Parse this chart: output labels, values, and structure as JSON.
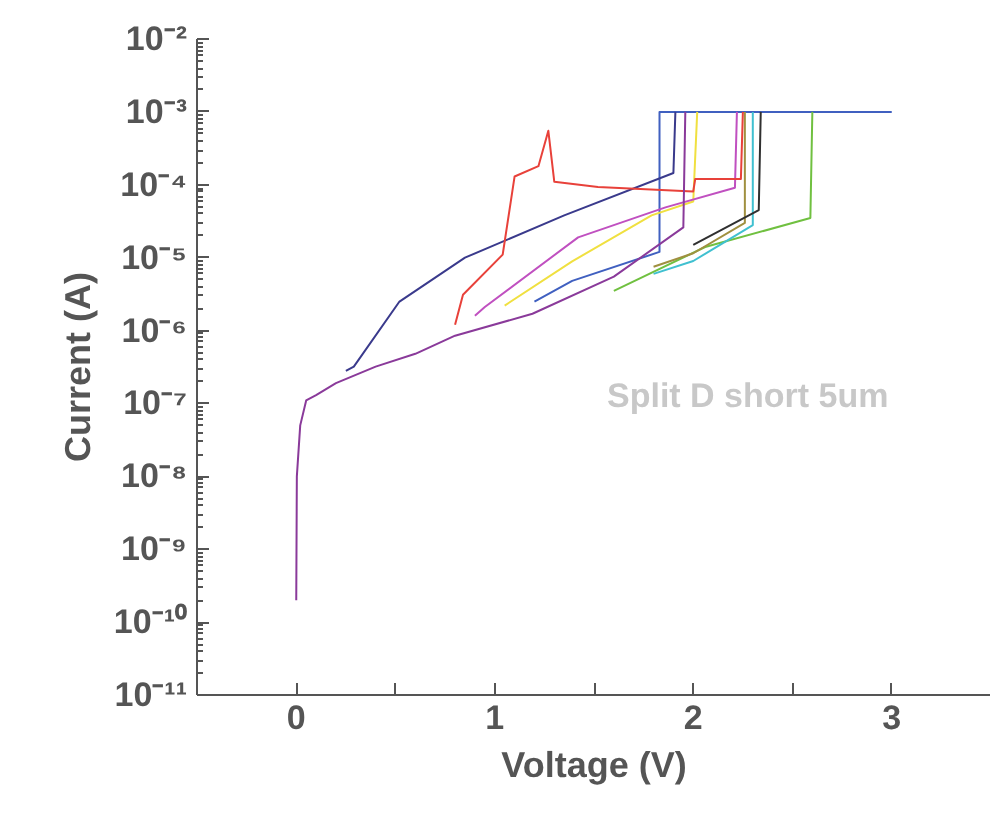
{
  "chart_data": {
    "type": "line",
    "xlabel": "Voltage (V)",
    "ylabel": "Current (A)",
    "log": "y",
    "grid": false,
    "marker": "none",
    "line_style": "solid",
    "annotations": [
      "Split D short 5um"
    ],
    "xlim": [
      -0.5,
      3.5
    ],
    "ylim": [
      1e-11,
      0.01
    ],
    "xticks": [
      0,
      {
        "value": 0.5,
        "label": null
      },
      1,
      {
        "value": 1.5,
        "label": null
      },
      2,
      {
        "value": 2.5,
        "label": null
      },
      3
    ],
    "yticks": [
      {
        "value": 1e-11,
        "label": "10⁻¹¹"
      },
      {
        "value": 1e-10,
        "label": "10⁻¹⁰"
      },
      {
        "value": 1e-09,
        "label": "10⁻⁹"
      },
      {
        "value": 1e-08,
        "label": "10⁻⁸"
      },
      {
        "value": 1e-07,
        "label": "10⁻⁷"
      },
      {
        "value": 1e-06,
        "label": "10⁻⁶"
      },
      {
        "value": 1e-05,
        "label": "10⁻⁵"
      },
      {
        "value": 0.0001,
        "label": "10⁻⁴"
      },
      {
        "value": 0.001,
        "label": "10⁻³"
      },
      {
        "value": 0.01,
        "label": "10⁻²"
      }
    ],
    "series": [
      {
        "color": "#4060c0",
        "x": [
          1.2,
          1.39,
          1.83,
          1.83,
          3.0
        ],
        "values": [
          2.5e-06,
          4.8e-06,
          1.2e-05,
          0.001,
          0.001
        ]
      },
      {
        "color": "#3a3a8c",
        "x": [
          0.25,
          0.29,
          0.52,
          0.85,
          1.35,
          1.9,
          1.91
        ],
        "values": [
          2.8e-07,
          3.2e-07,
          2.5e-06,
          1e-05,
          3.8e-05,
          0.000145,
          0.001
        ]
      },
      {
        "color": "#70c040",
        "x": [
          1.6,
          2.06,
          2.59,
          2.6
        ],
        "values": [
          3.5e-06,
          1.4e-05,
          3.5e-05,
          0.001
        ]
      },
      {
        "color": "#40c0d0",
        "x": [
          1.8,
          2.0,
          2.3,
          2.3
        ],
        "values": [
          6e-06,
          9e-06,
          2.8e-05,
          0.001
        ]
      },
      {
        "color": "#a09040",
        "x": [
          1.8,
          2.0,
          2.26,
          2.26
        ],
        "values": [
          7.5e-06,
          1.15e-05,
          3e-05,
          0.001
        ]
      },
      {
        "color": "#303030",
        "x": [
          2.0,
          2.33,
          2.34
        ],
        "values": [
          1.5e-05,
          4.5e-05,
          0.001
        ]
      },
      {
        "color": "#f0e040",
        "x": [
          1.05,
          1.39,
          1.79,
          2.0,
          2.02
        ],
        "values": [
          2.2e-06,
          8.9e-06,
          3.8e-05,
          5.9e-05,
          0.001
        ]
      },
      {
        "color": "#c050c0",
        "x": [
          0.9,
          0.95,
          1.42,
          1.86,
          2.21,
          2.22
        ],
        "values": [
          1.6e-06,
          2.1e-06,
          1.9e-05,
          4.9e-05,
          9.1e-05,
          0.001
        ]
      },
      {
        "color": "#e8413a",
        "x": [
          0.8,
          0.84,
          1.04,
          1.1,
          1.22,
          1.27,
          1.3,
          1.52,
          2.0,
          2.01,
          2.24,
          2.25
        ],
        "values": [
          1.2e-06,
          3.1e-06,
          1.1e-05,
          0.00013,
          0.00018,
          0.00055,
          0.00011,
          9.3e-05,
          8.1e-05,
          0.00012,
          0.00012,
          0.001
        ]
      },
      {
        "color": "#8a3a9a",
        "x": [
          0,
          0.003,
          0.02,
          0.05,
          0.1,
          0.2,
          0.4,
          0.6,
          0.8,
          1.19,
          1.6,
          1.95,
          1.96
        ],
        "values": [
          2e-10,
          1e-08,
          5e-08,
          1.1e-07,
          1.3e-07,
          1.9e-07,
          3.2e-07,
          4.8e-07,
          8.5e-07,
          1.7e-06,
          5.5e-06,
          2.6e-05,
          0.001
        ]
      }
    ]
  }
}
